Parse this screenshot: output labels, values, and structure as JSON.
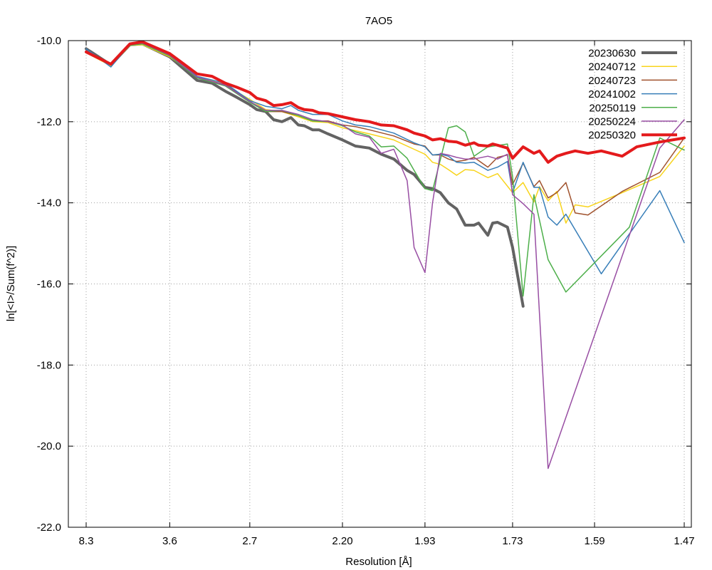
{
  "chart_data": {
    "type": "line",
    "title": "7AO5",
    "xlabel": "Resolution [Å]",
    "ylabel": "ln[<I>/Sum(f^2)]",
    "x_scale": "1/d^2",
    "xlim_resolution": [
      8.3,
      1.47
    ],
    "ylim": [
      -22.0,
      -10.0
    ],
    "x_ticks": [
      "8.3",
      "3.6",
      "2.7",
      "2.20",
      "1.93",
      "1.73",
      "1.59",
      "1.47"
    ],
    "y_ticks": [
      "-10.0",
      "-12.0",
      "-14.0",
      "-16.0",
      "-18.0",
      "-20.0",
      "-22.0"
    ],
    "grid": true,
    "legend_position": "top-right",
    "series": [
      {
        "name": "20230630",
        "color": "#636363",
        "width": 4,
        "points": [
          [
            8.3,
            -10.2
          ],
          [
            5.5,
            -10.6
          ],
          [
            4.6,
            -10.1
          ],
          [
            4.2,
            -10.08
          ],
          [
            3.6,
            -10.4
          ],
          [
            3.2,
            -10.98
          ],
          [
            3.03,
            -11.05
          ],
          [
            2.9,
            -11.25
          ],
          [
            2.8,
            -11.4
          ],
          [
            2.7,
            -11.58
          ],
          [
            2.65,
            -11.7
          ],
          [
            2.59,
            -11.75
          ],
          [
            2.54,
            -11.95
          ],
          [
            2.49,
            -12.0
          ],
          [
            2.44,
            -11.9
          ],
          [
            2.4,
            -12.08
          ],
          [
            2.37,
            -12.1
          ],
          [
            2.33,
            -12.2
          ],
          [
            2.3,
            -12.2
          ],
          [
            2.26,
            -12.3
          ],
          [
            2.2,
            -12.45
          ],
          [
            2.15,
            -12.6
          ],
          [
            2.1,
            -12.65
          ],
          [
            2.06,
            -12.8
          ],
          [
            2.02,
            -12.92
          ],
          [
            1.98,
            -13.2
          ],
          [
            1.96,
            -13.3
          ],
          [
            1.93,
            -13.62
          ],
          [
            1.91,
            -13.65
          ],
          [
            1.89,
            -13.75
          ],
          [
            1.87,
            -14.0
          ],
          [
            1.85,
            -14.15
          ],
          [
            1.83,
            -14.55
          ],
          [
            1.81,
            -14.55
          ],
          [
            1.8,
            -14.5
          ],
          [
            1.78,
            -14.8
          ],
          [
            1.77,
            -14.5
          ],
          [
            1.76,
            -14.48
          ],
          [
            1.74,
            -14.6
          ],
          [
            1.73,
            -15.1
          ],
          [
            1.71,
            -16.55
          ]
        ]
      },
      {
        "name": "20240712",
        "color": "#f8d41c",
        "width": 1.5,
        "points": [
          [
            8.3,
            -10.3
          ],
          [
            5.5,
            -10.62
          ],
          [
            4.6,
            -10.12
          ],
          [
            4.2,
            -10.1
          ],
          [
            3.6,
            -10.4
          ],
          [
            3.2,
            -10.88
          ],
          [
            2.9,
            -11.1
          ],
          [
            2.7,
            -11.45
          ],
          [
            2.59,
            -11.7
          ],
          [
            2.49,
            -11.75
          ],
          [
            2.4,
            -11.88
          ],
          [
            2.33,
            -12.0
          ],
          [
            2.26,
            -12.02
          ],
          [
            2.2,
            -12.15
          ],
          [
            2.15,
            -12.22
          ],
          [
            2.1,
            -12.3
          ],
          [
            2.02,
            -12.45
          ],
          [
            1.96,
            -12.68
          ],
          [
            1.93,
            -12.8
          ],
          [
            1.91,
            -13.0
          ],
          [
            1.89,
            -13.05
          ],
          [
            1.87,
            -13.18
          ],
          [
            1.85,
            -13.32
          ],
          [
            1.83,
            -13.18
          ],
          [
            1.81,
            -13.2
          ],
          [
            1.78,
            -13.38
          ],
          [
            1.76,
            -13.28
          ],
          [
            1.73,
            -13.75
          ],
          [
            1.71,
            -13.5
          ],
          [
            1.69,
            -13.98
          ],
          [
            1.68,
            -13.6
          ],
          [
            1.665,
            -13.95
          ],
          [
            1.65,
            -13.72
          ],
          [
            1.635,
            -14.5
          ],
          [
            1.62,
            -14.05
          ],
          [
            1.6,
            -14.1
          ],
          [
            1.55,
            -13.75
          ],
          [
            1.5,
            -13.35
          ],
          [
            1.47,
            -12.6
          ]
        ]
      },
      {
        "name": "20240723",
        "color": "#a0522d",
        "width": 1.5,
        "points": [
          [
            8.3,
            -10.25
          ],
          [
            5.5,
            -10.6
          ],
          [
            4.6,
            -10.1
          ],
          [
            4.2,
            -10.06
          ],
          [
            3.6,
            -10.38
          ],
          [
            3.2,
            -10.92
          ],
          [
            2.9,
            -11.08
          ],
          [
            2.7,
            -11.5
          ],
          [
            2.59,
            -11.75
          ],
          [
            2.49,
            -11.75
          ],
          [
            2.4,
            -11.85
          ],
          [
            2.33,
            -11.98
          ],
          [
            2.26,
            -11.98
          ],
          [
            2.2,
            -12.08
          ],
          [
            2.15,
            -12.12
          ],
          [
            2.1,
            -12.2
          ],
          [
            2.02,
            -12.35
          ],
          [
            1.96,
            -12.55
          ],
          [
            1.93,
            -12.6
          ],
          [
            1.91,
            -12.82
          ],
          [
            1.89,
            -12.82
          ],
          [
            1.87,
            -12.92
          ],
          [
            1.85,
            -12.98
          ],
          [
            1.83,
            -12.95
          ],
          [
            1.81,
            -12.88
          ],
          [
            1.78,
            -13.12
          ],
          [
            1.76,
            -12.88
          ],
          [
            1.74,
            -12.82
          ],
          [
            1.73,
            -13.55
          ],
          [
            1.71,
            -13.02
          ],
          [
            1.69,
            -13.6
          ],
          [
            1.68,
            -13.45
          ],
          [
            1.665,
            -13.88
          ],
          [
            1.65,
            -13.75
          ],
          [
            1.635,
            -13.5
          ],
          [
            1.62,
            -14.25
          ],
          [
            1.6,
            -14.3
          ],
          [
            1.55,
            -13.72
          ],
          [
            1.5,
            -13.25
          ],
          [
            1.47,
            -12.4
          ]
        ]
      },
      {
        "name": "20241002",
        "color": "#377eb8",
        "width": 1.5,
        "points": [
          [
            8.3,
            -10.2
          ],
          [
            5.5,
            -10.65
          ],
          [
            4.6,
            -10.1
          ],
          [
            4.2,
            -10.05
          ],
          [
            3.6,
            -10.35
          ],
          [
            3.2,
            -10.88
          ],
          [
            2.9,
            -11.05
          ],
          [
            2.7,
            -11.48
          ],
          [
            2.59,
            -11.62
          ],
          [
            2.49,
            -11.68
          ],
          [
            2.44,
            -11.6
          ],
          [
            2.4,
            -11.72
          ],
          [
            2.33,
            -11.82
          ],
          [
            2.26,
            -11.82
          ],
          [
            2.2,
            -11.98
          ],
          [
            2.15,
            -12.08
          ],
          [
            2.1,
            -12.12
          ],
          [
            2.02,
            -12.28
          ],
          [
            1.96,
            -12.52
          ],
          [
            1.93,
            -12.62
          ],
          [
            1.91,
            -12.82
          ],
          [
            1.89,
            -12.8
          ],
          [
            1.87,
            -12.85
          ],
          [
            1.85,
            -13.0
          ],
          [
            1.83,
            -13.02
          ],
          [
            1.81,
            -13.0
          ],
          [
            1.78,
            -13.2
          ],
          [
            1.76,
            -13.12
          ],
          [
            1.74,
            -12.98
          ],
          [
            1.73,
            -13.75
          ],
          [
            1.71,
            -13.0
          ],
          [
            1.69,
            -13.62
          ],
          [
            1.68,
            -13.62
          ],
          [
            1.665,
            -14.35
          ],
          [
            1.65,
            -14.55
          ],
          [
            1.635,
            -14.28
          ],
          [
            1.58,
            -15.75
          ],
          [
            1.5,
            -13.7
          ],
          [
            1.47,
            -14.98
          ]
        ]
      },
      {
        "name": "20250119",
        "color": "#4daf4a",
        "width": 1.5,
        "points": [
          [
            8.3,
            -10.25
          ],
          [
            5.5,
            -10.6
          ],
          [
            4.6,
            -10.12
          ],
          [
            4.2,
            -10.08
          ],
          [
            3.6,
            -10.38
          ],
          [
            3.2,
            -10.92
          ],
          [
            2.9,
            -11.12
          ],
          [
            2.7,
            -11.52
          ],
          [
            2.59,
            -11.75
          ],
          [
            2.49,
            -11.72
          ],
          [
            2.4,
            -11.85
          ],
          [
            2.33,
            -11.98
          ],
          [
            2.26,
            -12.0
          ],
          [
            2.2,
            -12.1
          ],
          [
            2.15,
            -12.25
          ],
          [
            2.1,
            -12.35
          ],
          [
            2.06,
            -12.62
          ],
          [
            2.02,
            -12.6
          ],
          [
            1.98,
            -12.9
          ],
          [
            1.96,
            -13.2
          ],
          [
            1.93,
            -13.65
          ],
          [
            1.91,
            -13.7
          ],
          [
            1.87,
            -12.15
          ],
          [
            1.85,
            -12.1
          ],
          [
            1.83,
            -12.25
          ],
          [
            1.81,
            -12.85
          ],
          [
            1.78,
            -12.62
          ],
          [
            1.74,
            -12.55
          ],
          [
            1.73,
            -13.35
          ],
          [
            1.71,
            -16.3
          ],
          [
            1.69,
            -13.8
          ],
          [
            1.665,
            -15.4
          ],
          [
            1.635,
            -16.2
          ],
          [
            1.54,
            -14.6
          ],
          [
            1.5,
            -12.4
          ],
          [
            1.47,
            -12.7
          ]
        ]
      },
      {
        "name": "20250224",
        "color": "#984ea3",
        "width": 1.5,
        "points": [
          [
            8.3,
            -10.25
          ],
          [
            5.5,
            -10.6
          ],
          [
            4.6,
            -10.1
          ],
          [
            4.2,
            -10.06
          ],
          [
            3.6,
            -10.36
          ],
          [
            3.2,
            -10.9
          ],
          [
            2.9,
            -11.1
          ],
          [
            2.7,
            -11.5
          ],
          [
            2.59,
            -11.72
          ],
          [
            2.49,
            -11.72
          ],
          [
            2.4,
            -11.82
          ],
          [
            2.33,
            -11.95
          ],
          [
            2.26,
            -12.0
          ],
          [
            2.2,
            -12.08
          ],
          [
            2.15,
            -12.3
          ],
          [
            2.1,
            -12.38
          ],
          [
            2.06,
            -12.78
          ],
          [
            2.02,
            -12.68
          ],
          [
            1.98,
            -13.45
          ],
          [
            1.96,
            -15.1
          ],
          [
            1.93,
            -15.72
          ],
          [
            1.91,
            -14.0
          ],
          [
            1.89,
            -12.78
          ],
          [
            1.87,
            -12.82
          ],
          [
            1.85,
            -12.88
          ],
          [
            1.83,
            -12.92
          ],
          [
            1.81,
            -12.92
          ],
          [
            1.78,
            -12.85
          ],
          [
            1.76,
            -12.92
          ],
          [
            1.74,
            -12.8
          ],
          [
            1.73,
            -13.8
          ],
          [
            1.71,
            -14.02
          ],
          [
            1.69,
            -14.28
          ],
          [
            1.665,
            -20.55
          ],
          [
            1.5,
            -12.65
          ],
          [
            1.47,
            -11.95
          ]
        ]
      },
      {
        "name": "20250320",
        "color": "#e41a1c",
        "width": 4,
        "points": [
          [
            8.3,
            -10.28
          ],
          [
            5.5,
            -10.58
          ],
          [
            4.6,
            -10.08
          ],
          [
            4.2,
            -10.03
          ],
          [
            3.6,
            -10.32
          ],
          [
            3.2,
            -10.82
          ],
          [
            3.03,
            -10.88
          ],
          [
            2.9,
            -11.05
          ],
          [
            2.8,
            -11.15
          ],
          [
            2.7,
            -11.28
          ],
          [
            2.65,
            -11.42
          ],
          [
            2.59,
            -11.48
          ],
          [
            2.54,
            -11.6
          ],
          [
            2.49,
            -11.58
          ],
          [
            2.44,
            -11.53
          ],
          [
            2.4,
            -11.65
          ],
          [
            2.37,
            -11.7
          ],
          [
            2.33,
            -11.72
          ],
          [
            2.3,
            -11.78
          ],
          [
            2.26,
            -11.8
          ],
          [
            2.2,
            -11.88
          ],
          [
            2.15,
            -11.95
          ],
          [
            2.1,
            -12.0
          ],
          [
            2.06,
            -12.08
          ],
          [
            2.02,
            -12.1
          ],
          [
            1.98,
            -12.2
          ],
          [
            1.96,
            -12.28
          ],
          [
            1.93,
            -12.35
          ],
          [
            1.91,
            -12.45
          ],
          [
            1.89,
            -12.42
          ],
          [
            1.87,
            -12.48
          ],
          [
            1.85,
            -12.5
          ],
          [
            1.83,
            -12.58
          ],
          [
            1.81,
            -12.52
          ],
          [
            1.8,
            -12.58
          ],
          [
            1.78,
            -12.6
          ],
          [
            1.77,
            -12.55
          ],
          [
            1.76,
            -12.58
          ],
          [
            1.74,
            -12.65
          ],
          [
            1.73,
            -12.9
          ],
          [
            1.71,
            -12.62
          ],
          [
            1.69,
            -12.78
          ],
          [
            1.68,
            -12.72
          ],
          [
            1.665,
            -13.0
          ],
          [
            1.65,
            -12.85
          ],
          [
            1.635,
            -12.78
          ],
          [
            1.62,
            -12.72
          ],
          [
            1.6,
            -12.78
          ],
          [
            1.58,
            -12.72
          ],
          [
            1.55,
            -12.85
          ],
          [
            1.53,
            -12.62
          ],
          [
            1.5,
            -12.5
          ],
          [
            1.47,
            -12.4
          ]
        ]
      }
    ]
  }
}
